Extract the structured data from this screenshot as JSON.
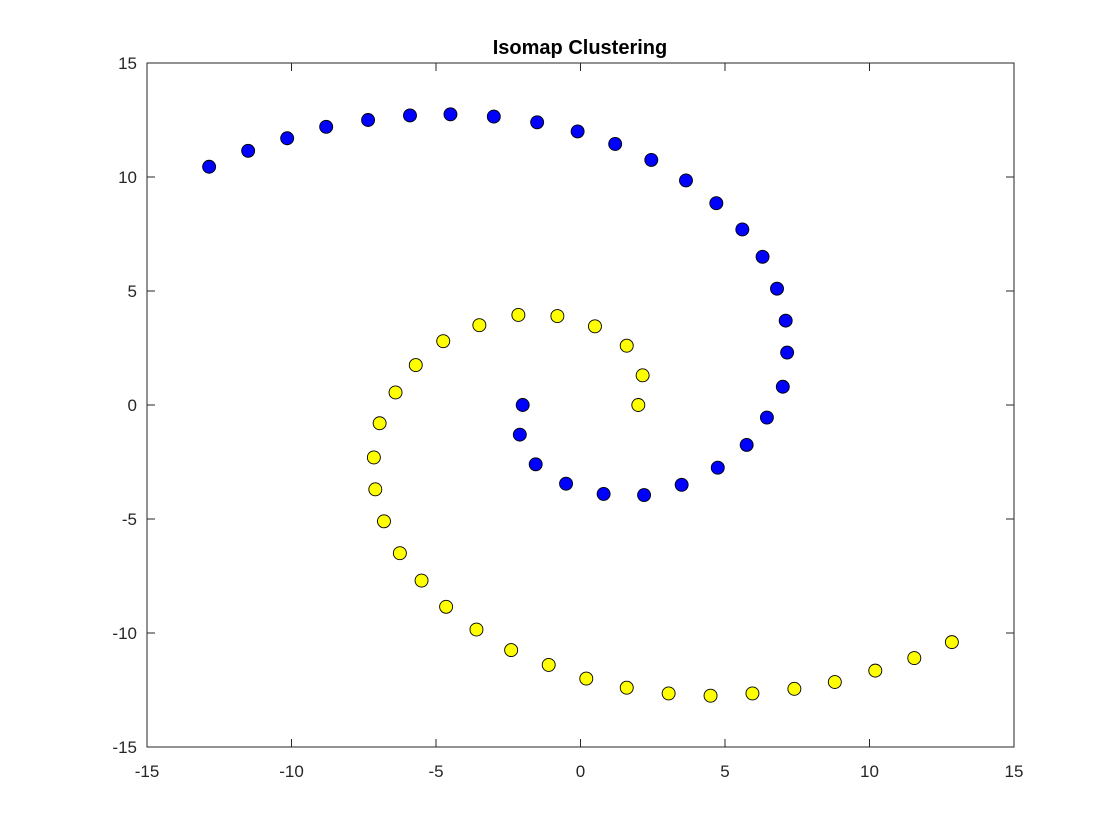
{
  "chart_data": {
    "type": "scatter",
    "title": "Isomap Clustering",
    "xlabel": "",
    "ylabel": "",
    "xlim": [
      -15,
      15
    ],
    "ylim": [
      -15,
      15
    ],
    "xticks": [
      -15,
      -10,
      -5,
      0,
      5,
      10,
      15
    ],
    "yticks": [
      -15,
      -10,
      -5,
      0,
      5,
      10,
      15
    ],
    "xtick_labels": [
      "-15",
      "-10",
      "-5",
      "0",
      "5",
      "10",
      "15"
    ],
    "ytick_labels": [
      "-15",
      "-10",
      "-5",
      "0",
      "5",
      "10",
      "15"
    ],
    "grid": false,
    "legend": "none",
    "series": [
      {
        "color": "#ffff00",
        "points": [
          [
            2.0,
            0.0
          ],
          [
            2.15,
            1.3
          ],
          [
            1.6,
            2.6
          ],
          [
            0.5,
            3.45
          ],
          [
            -0.8,
            3.9
          ],
          [
            -2.15,
            3.95
          ],
          [
            -3.5,
            3.5
          ],
          [
            -4.75,
            2.8
          ],
          [
            -5.7,
            1.75
          ],
          [
            -6.4,
            0.55
          ],
          [
            -6.95,
            -0.8
          ],
          [
            -7.15,
            -2.3
          ],
          [
            -7.1,
            -3.7
          ],
          [
            -6.8,
            -5.1
          ],
          [
            -6.25,
            -6.5
          ],
          [
            -5.5,
            -7.7
          ],
          [
            -4.65,
            -8.85
          ],
          [
            -3.6,
            -9.85
          ],
          [
            -2.4,
            -10.75
          ],
          [
            -1.1,
            -11.4
          ],
          [
            0.2,
            -12.0
          ],
          [
            1.6,
            -12.4
          ],
          [
            3.05,
            -12.65
          ],
          [
            4.5,
            -12.75
          ],
          [
            5.95,
            -12.65
          ],
          [
            7.4,
            -12.45
          ],
          [
            8.8,
            -12.15
          ],
          [
            10.2,
            -11.65
          ],
          [
            11.55,
            -11.1
          ],
          [
            12.85,
            -10.4
          ]
        ]
      },
      {
        "color": "#0000ff",
        "points": [
          [
            -2.0,
            0.0
          ],
          [
            -2.1,
            -1.3
          ],
          [
            -1.55,
            -2.6
          ],
          [
            -0.5,
            -3.45
          ],
          [
            0.8,
            -3.9
          ],
          [
            2.2,
            -3.95
          ],
          [
            3.5,
            -3.5
          ],
          [
            4.75,
            -2.75
          ],
          [
            5.75,
            -1.75
          ],
          [
            6.45,
            -0.55
          ],
          [
            7.0,
            0.8
          ],
          [
            7.15,
            2.3
          ],
          [
            7.1,
            3.7
          ],
          [
            6.8,
            5.1
          ],
          [
            6.3,
            6.5
          ],
          [
            5.6,
            7.7
          ],
          [
            4.7,
            8.85
          ],
          [
            3.65,
            9.85
          ],
          [
            2.45,
            10.75
          ],
          [
            1.2,
            11.45
          ],
          [
            -0.1,
            12.0
          ],
          [
            -1.5,
            12.4
          ],
          [
            -3.0,
            12.65
          ],
          [
            -4.5,
            12.75
          ],
          [
            -5.9,
            12.7
          ],
          [
            -7.35,
            12.5
          ],
          [
            -8.8,
            12.2
          ],
          [
            -10.15,
            11.7
          ],
          [
            -11.5,
            11.15
          ],
          [
            -12.85,
            10.45
          ]
        ]
      }
    ]
  }
}
